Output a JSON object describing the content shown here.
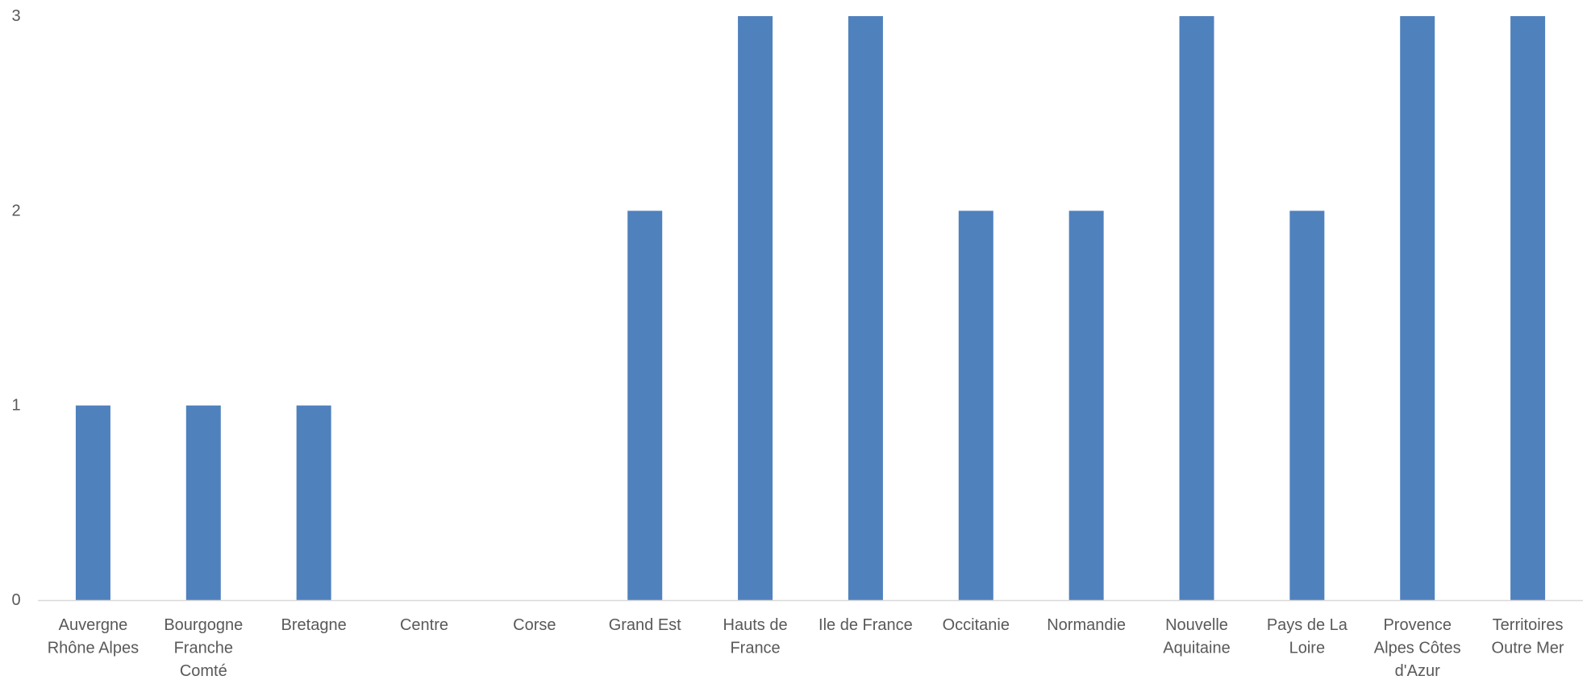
{
  "chart_data": {
    "type": "bar",
    "categories": [
      "Auvergne Rhône Alpes",
      "Bourgogne Franche Comté",
      "Bretagne",
      "Centre",
      "Corse",
      "Grand Est",
      "Hauts de France",
      "Ile de France",
      "Occitanie",
      "Normandie",
      "Nouvelle Aquitaine",
      "Pays de La Loire",
      "Provence Alpes Côtes d'Azur",
      "Territoires Outre Mer"
    ],
    "category_label_lines": [
      [
        "Auvergne",
        "Rhône Alpes"
      ],
      [
        "Bourgogne",
        "Franche",
        "Comté"
      ],
      [
        "Bretagne"
      ],
      [
        "Centre"
      ],
      [
        "Corse"
      ],
      [
        "Grand Est"
      ],
      [
        "Hauts de",
        "France"
      ],
      [
        "Ile de France"
      ],
      [
        "Occitanie"
      ],
      [
        "Normandie"
      ],
      [
        "Nouvelle",
        "Aquitaine"
      ],
      [
        "Pays de La",
        "Loire"
      ],
      [
        "Provence",
        "Alpes Côtes",
        "d'Azur"
      ],
      [
        "Territoires",
        "Outre Mer"
      ]
    ],
    "values": [
      1,
      1,
      1,
      0,
      0,
      2,
      3,
      3,
      2,
      2,
      3,
      2,
      3,
      3
    ],
    "y_ticks": [
      "0",
      "1",
      "2",
      "3"
    ],
    "ylim": [
      0,
      3
    ],
    "title": "",
    "xlabel": "",
    "ylabel": "",
    "grid": false,
    "legend": "none",
    "colors": {
      "bar": "#4f81bd",
      "axis_line": "#d9d9d9",
      "label": "#595959"
    }
  }
}
